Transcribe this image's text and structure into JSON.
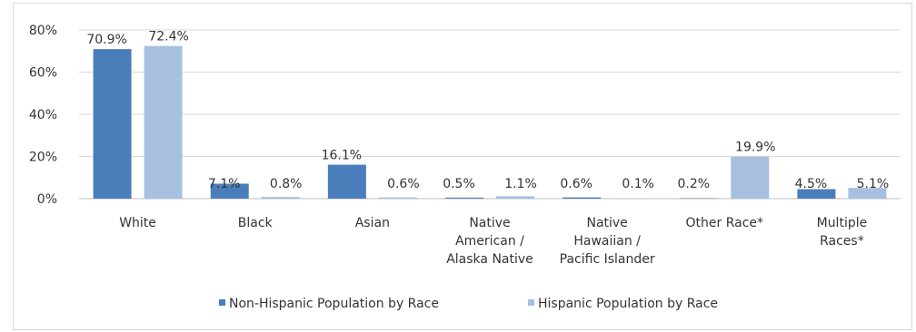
{
  "chart_data": {
    "type": "bar",
    "categories": [
      [
        "White"
      ],
      [
        "Black"
      ],
      [
        "Asian"
      ],
      [
        "Native",
        "American /",
        "Alaska Native"
      ],
      [
        "Native",
        "Hawaiian /",
        "Pacific Islander"
      ],
      [
        "Other Race*"
      ],
      [
        "Multiple",
        "Races*"
      ]
    ],
    "series": [
      {
        "name": "Non-Hispanic Population by Race",
        "values": [
          70.9,
          7.1,
          16.1,
          0.5,
          0.6,
          0.2,
          4.5
        ],
        "labels": [
          "70.9%",
          "7.1%",
          "16.1%",
          "0.5%",
          "0.6%",
          "0.2%",
          "4.5%"
        ],
        "color": "#4a7ebb"
      },
      {
        "name": "Hispanic Population by Race",
        "values": [
          72.4,
          0.8,
          0.6,
          1.1,
          0.1,
          19.9,
          5.1
        ],
        "labels": [
          "72.4%",
          "0.8%",
          "0.6%",
          "1.1%",
          "0.1%",
          "19.9%",
          "5.1%"
        ],
        "color": "#a7c0e0"
      }
    ],
    "ylim": [
      0,
      80
    ],
    "yticks": [
      "0%",
      "20%",
      "40%",
      "60%",
      "80%"
    ],
    "ytick_values": [
      0,
      20,
      40,
      60,
      80
    ],
    "grid": true,
    "legend": "bottom"
  }
}
